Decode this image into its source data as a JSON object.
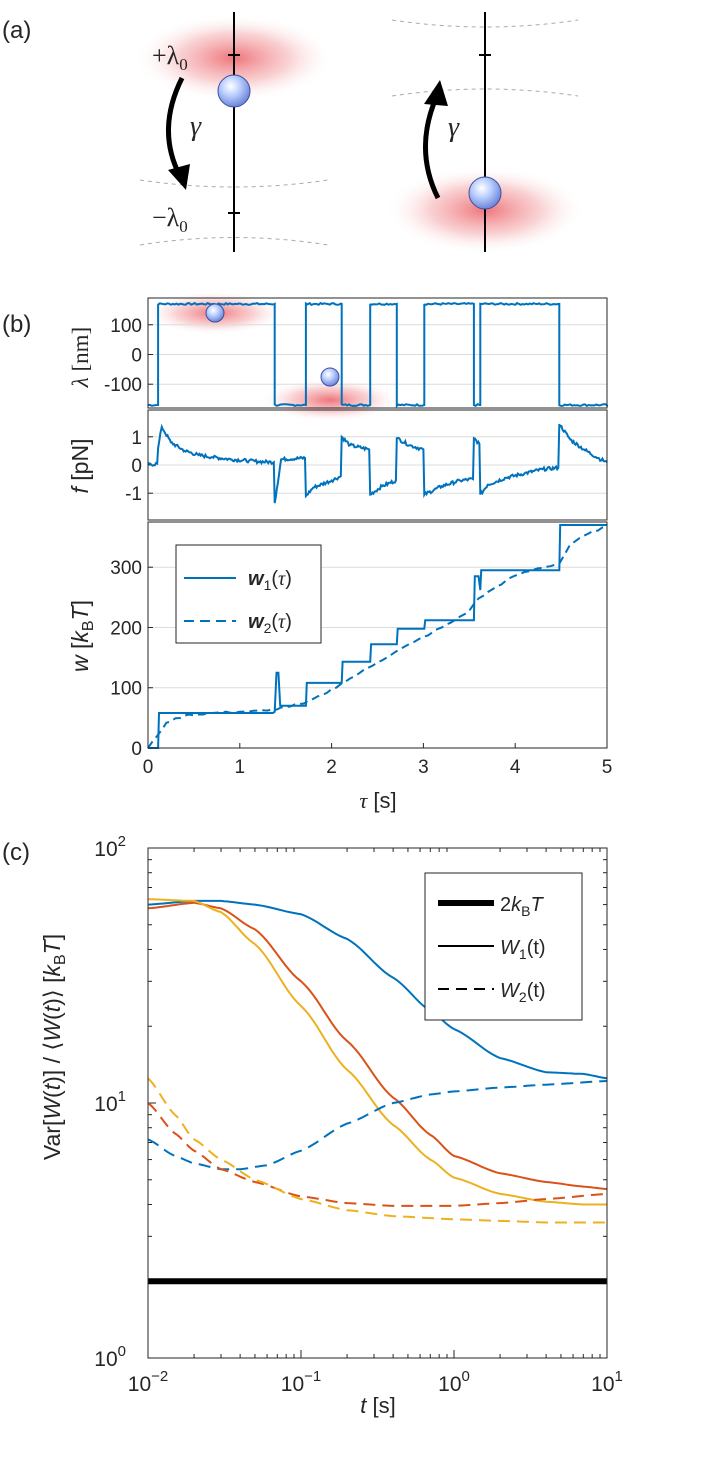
{
  "colors": {
    "blue": "#0072bd",
    "orange": "#d95319",
    "yellow": "#edb120",
    "black": "#000000",
    "grid": "#dcdcdc",
    "axis": "#262626",
    "bead": "#aebfff",
    "beam": "#e8474e"
  },
  "panel_a": {
    "label": "(a)",
    "plus_label": "+λ",
    "minus_label": "−λ",
    "sub0": "0",
    "gamma": "γ"
  },
  "panel_b": {
    "label": "(b)"
  },
  "panel_c": {
    "label": "(c)"
  },
  "chart_data": [
    {
      "id": "b_lambda",
      "type": "line",
      "ylabel": "λ [nm]",
      "xlim": [
        0,
        5
      ],
      "ylim": [
        -180,
        190
      ],
      "yticks": [
        100,
        0,
        -100
      ],
      "ytick_labels": [
        "100",
        "0",
        "-100"
      ],
      "grid": true,
      "switch_times": [
        0.11,
        1.38,
        1.72,
        2.11,
        2.42,
        2.71,
        3.01,
        3.55,
        3.62,
        4.48
      ],
      "levels": [
        -170,
        170
      ],
      "start_level": -170,
      "noise": 6
    },
    {
      "id": "b_force",
      "type": "line",
      "ylabel": "f [pN]",
      "xlim": [
        0,
        5
      ],
      "ylim": [
        -1.95,
        1.95
      ],
      "yticks": [
        1,
        0,
        -1
      ],
      "ytick_labels": [
        "1",
        "0",
        "-1"
      ],
      "grid": true,
      "series": [
        {
          "name": "f",
          "x": [
            0,
            0.1,
            0.11,
            0.15,
            0.25,
            0.4,
            0.55,
            0.7,
            0.9,
            1.1,
            1.2,
            1.37,
            1.38,
            1.45,
            1.71,
            1.72,
            1.8,
            2.0,
            2.1,
            2.11,
            2.2,
            2.41,
            2.42,
            2.55,
            2.7,
            2.71,
            2.85,
            3.0,
            3.01,
            3.2,
            3.4,
            3.54,
            3.55,
            3.61,
            3.62,
            3.7,
            3.9,
            4.1,
            4.3,
            4.47,
            4.48,
            4.6,
            4.75,
            4.9,
            5.0
          ],
          "y": [
            0.0,
            0.05,
            0.6,
            1.35,
            0.8,
            0.5,
            0.35,
            0.28,
            0.2,
            0.15,
            0.12,
            0.1,
            -1.35,
            0.2,
            0.25,
            -1.1,
            -0.8,
            -0.55,
            -0.4,
            1.0,
            0.7,
            0.55,
            -1.05,
            -0.75,
            -0.55,
            0.95,
            0.7,
            0.55,
            -1.05,
            -0.75,
            -0.55,
            -0.5,
            0.95,
            0.75,
            -1.05,
            -0.7,
            -0.45,
            -0.3,
            -0.15,
            -0.1,
            1.45,
            0.9,
            0.55,
            0.25,
            0.1
          ]
        }
      ]
    },
    {
      "id": "b_work",
      "type": "line",
      "xlabel": "τ [s]",
      "ylabel": "w [k_BT]",
      "xlim": [
        0,
        5
      ],
      "ylim": [
        0,
        375
      ],
      "xticks": [
        0,
        1,
        2,
        3,
        4,
        5
      ],
      "xtick_labels": [
        "0",
        "1",
        "2",
        "3",
        "4",
        "5"
      ],
      "yticks": [
        0,
        100,
        200,
        300
      ],
      "ytick_labels": [
        "0",
        "100",
        "200",
        "300"
      ],
      "grid": true,
      "legend": {
        "position": "top-left",
        "entries": [
          "w₁(τ)",
          "w₂(τ)"
        ]
      },
      "series": [
        {
          "name": "w1",
          "style": "solid",
          "x": [
            0,
            0.11,
            0.12,
            1.36,
            1.38,
            1.4,
            1.42,
            1.44,
            1.72,
            1.73,
            2.11,
            2.12,
            2.42,
            2.43,
            2.71,
            2.72,
            3.01,
            3.02,
            3.55,
            3.56,
            3.6,
            3.62,
            3.63,
            4.48,
            4.49,
            5.0
          ],
          "y": [
            0,
            0,
            58,
            58,
            60,
            125,
            125,
            70,
            70,
            108,
            108,
            143,
            143,
            172,
            172,
            198,
            198,
            212,
            212,
            285,
            285,
            262,
            295,
            295,
            370,
            370
          ]
        },
        {
          "name": "w2",
          "style": "dashed",
          "x": [
            0,
            0.1,
            0.2,
            0.4,
            0.7,
            1.0,
            1.3,
            1.5,
            1.7,
            1.9,
            2.1,
            2.3,
            2.5,
            2.7,
            2.9,
            3.1,
            3.3,
            3.5,
            3.6,
            3.8,
            4.0,
            4.2,
            4.48,
            4.6,
            4.8,
            5.0
          ],
          "y": [
            0,
            20,
            42,
            54,
            58,
            60,
            62,
            68,
            74,
            88,
            106,
            124,
            142,
            160,
            176,
            192,
            208,
            228,
            248,
            268,
            286,
            296,
            306,
            338,
            356,
            368
          ]
        }
      ]
    },
    {
      "id": "c_variance",
      "type": "line",
      "xlabel": "t [s]",
      "ylabel": "Var[W(t)] / ⟨W(t)⟩ [k_BT]",
      "xscale": "log",
      "yscale": "log",
      "xlim": [
        0.01,
        10
      ],
      "ylim": [
        1,
        100
      ],
      "xtick_exponents": [
        -2,
        -1,
        0,
        1
      ],
      "ytick_exponents": [
        0,
        1,
        2
      ],
      "tick_base": "10",
      "legend": {
        "position": "top-right",
        "entries": [
          "2k_BT",
          "W₁(t)",
          "W₂(t)"
        ]
      },
      "series": [
        {
          "name": "2k_BT",
          "color": "black",
          "style": "thick",
          "x": [
            0.01,
            10
          ],
          "y": [
            2,
            2
          ]
        },
        {
          "name": "W1 blue",
          "color": "blue",
          "style": "solid",
          "x": [
            0.01,
            0.02,
            0.03,
            0.05,
            0.1,
            0.2,
            0.4,
            0.7,
            1.0,
            2.0,
            4.0,
            7.0,
            10.0
          ],
          "y": [
            60,
            62,
            62,
            60,
            55,
            44,
            31,
            23,
            19.5,
            15,
            13.2,
            13,
            12.5
          ]
        },
        {
          "name": "W1 orange",
          "color": "orange",
          "style": "solid",
          "x": [
            0.01,
            0.02,
            0.03,
            0.05,
            0.1,
            0.2,
            0.4,
            0.7,
            1.0,
            2.0,
            4.0,
            7.0,
            10.0
          ],
          "y": [
            58,
            61,
            58,
            48,
            30,
            17.5,
            10.5,
            7.5,
            6.2,
            5.3,
            4.9,
            4.7,
            4.6
          ]
        },
        {
          "name": "W1 yellow",
          "color": "yellow",
          "style": "solid",
          "x": [
            0.01,
            0.02,
            0.03,
            0.05,
            0.1,
            0.2,
            0.4,
            0.7,
            1.0,
            2.0,
            4.0,
            7.0,
            10.0
          ],
          "y": [
            63,
            62,
            56,
            42,
            24,
            13.5,
            8.2,
            6.0,
            5.1,
            4.4,
            4.1,
            4.0,
            4.0
          ]
        },
        {
          "name": "W2 blue",
          "color": "blue",
          "style": "dashed",
          "x": [
            0.01,
            0.015,
            0.02,
            0.03,
            0.04,
            0.06,
            0.1,
            0.2,
            0.4,
            0.7,
            1.0,
            2.0,
            4.0,
            10.0
          ],
          "y": [
            7.2,
            6.2,
            5.8,
            5.5,
            5.5,
            5.7,
            6.5,
            8.3,
            10.0,
            10.8,
            11.1,
            11.5,
            11.8,
            12.2
          ]
        },
        {
          "name": "W2 orange",
          "color": "orange",
          "style": "dashed",
          "x": [
            0.01,
            0.015,
            0.02,
            0.03,
            0.05,
            0.1,
            0.2,
            0.4,
            1.0,
            2.0,
            4.0,
            10.0
          ],
          "y": [
            10.0,
            7.6,
            6.5,
            5.5,
            4.9,
            4.3,
            4.05,
            3.95,
            3.95,
            4.05,
            4.2,
            4.4
          ]
        },
        {
          "name": "W2 yellow",
          "color": "yellow",
          "style": "dashed",
          "x": [
            0.01,
            0.015,
            0.02,
            0.03,
            0.05,
            0.1,
            0.2,
            0.4,
            1.0,
            2.0,
            4.0,
            10.0
          ],
          "y": [
            12.5,
            9.0,
            7.2,
            6.0,
            5.0,
            4.2,
            3.8,
            3.6,
            3.5,
            3.45,
            3.4,
            3.4
          ]
        }
      ]
    }
  ]
}
